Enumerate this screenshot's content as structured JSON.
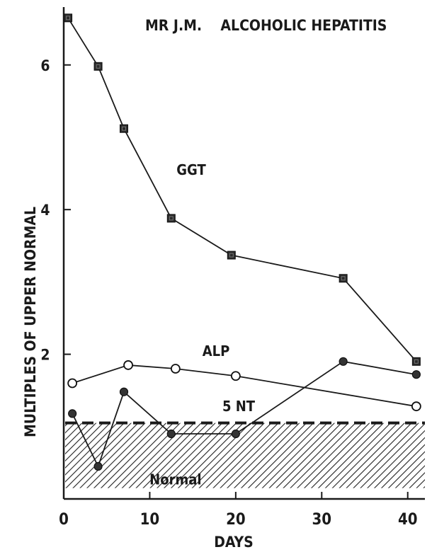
{
  "chart_data": {
    "type": "line",
    "title": "MR J.M.    ALCOHOLIC HEPATITIS",
    "xlabel": "DAYS",
    "ylabel": "MULTIPLES OF UPPER NORMAL",
    "xlim": [
      0,
      42
    ],
    "ylim": [
      0,
      6.8
    ],
    "xticks": [
      0,
      10,
      20,
      30,
      40
    ],
    "yticks": [
      2,
      4,
      6
    ],
    "grid": false,
    "normal_band": {
      "label": "Normal",
      "from": 0.15,
      "to": 1.05
    },
    "series": [
      {
        "name": "GGT",
        "marker": "filled-square",
        "x": [
          0.5,
          4,
          7,
          12.5,
          19.5,
          32.5,
          41
        ],
        "y": [
          6.65,
          5.98,
          5.12,
          3.88,
          3.37,
          3.05,
          1.9
        ]
      },
      {
        "name": "ALP",
        "marker": "open-circle",
        "x": [
          1,
          7.5,
          13,
          20,
          41
        ],
        "y": [
          1.6,
          1.85,
          1.8,
          1.7,
          1.28
        ]
      },
      {
        "name": "5 NT",
        "marker": "filled-circle",
        "x": [
          1,
          4,
          7,
          12.5,
          20,
          32.5,
          41
        ],
        "y": [
          1.18,
          0.45,
          1.48,
          0.9,
          0.9,
          1.9,
          1.72
        ]
      }
    ]
  }
}
